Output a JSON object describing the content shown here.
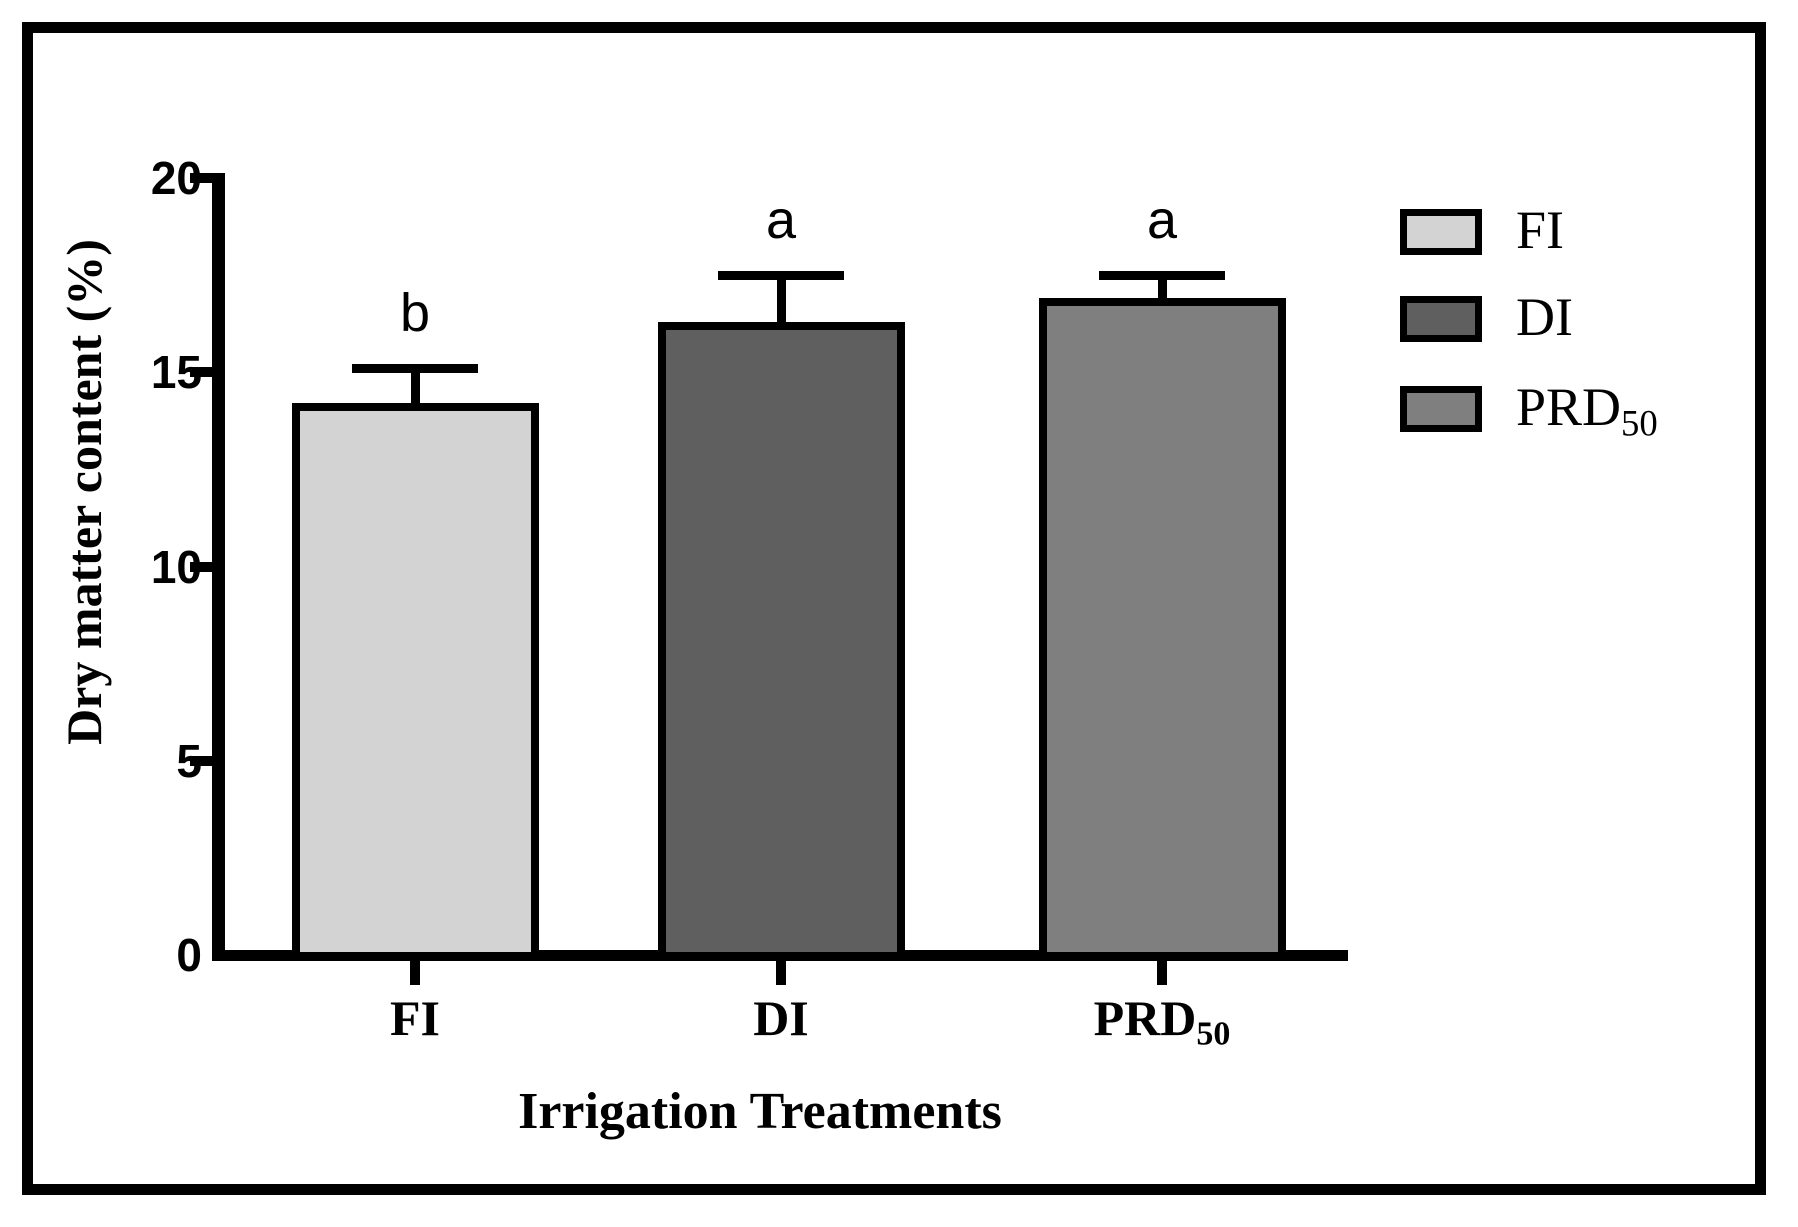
{
  "figure": {
    "background": "#ffffff",
    "frame_color": "#000000"
  },
  "chart_data": {
    "type": "bar",
    "title": "",
    "xlabel": "Irrigation Treatments",
    "ylabel": "Dry matter content (%)",
    "ylim": [
      0,
      20
    ],
    "yticks": [
      0,
      5,
      10,
      15,
      20
    ],
    "categories": [
      {
        "label": "FI",
        "sub": ""
      },
      {
        "label": "DI",
        "sub": ""
      },
      {
        "label": "PRD",
        "sub": "50"
      }
    ],
    "values": [
      14.2,
      16.3,
      16.9
    ],
    "errors_plus": [
      0.9,
      1.2,
      0.6
    ],
    "sig_letters": [
      "b",
      "a",
      "a"
    ],
    "bar_colors": [
      "#d3d3d3",
      "#5f5f5f",
      "#7f7f7f"
    ],
    "bar_border_color": "#000000",
    "error_bar_style": "upper-cap-only",
    "grid": false,
    "legend": {
      "position": "right",
      "entries": [
        {
          "label": "FI",
          "sub": "",
          "color": "#d3d3d3"
        },
        {
          "label": "DI",
          "sub": "",
          "color": "#5f5f5f"
        },
        {
          "label": "PRD",
          "sub": "50",
          "color": "#7f7f7f"
        }
      ]
    }
  }
}
